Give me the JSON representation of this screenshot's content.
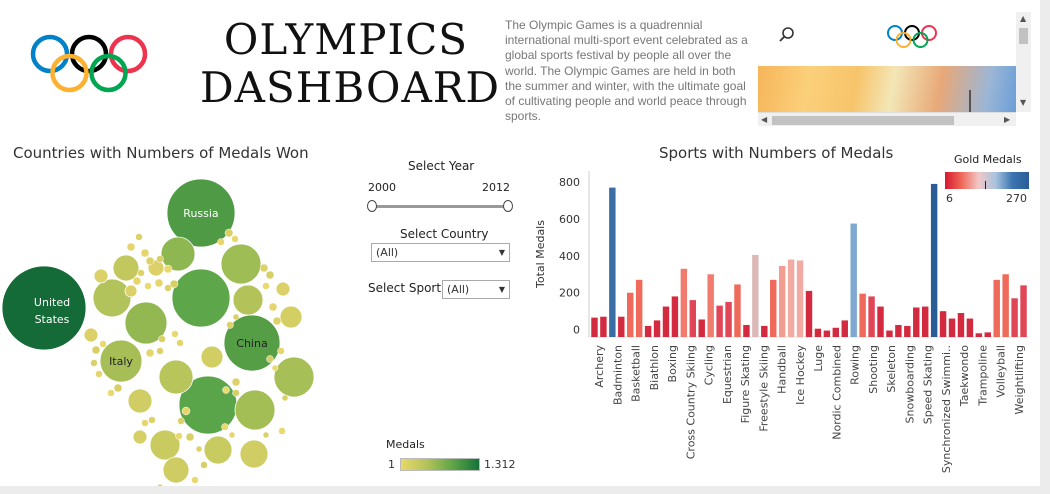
{
  "header": {
    "title_line1": "OLYMPICS",
    "title_line2": "DASHBOARD",
    "description": "The Olympic Games is a quadrennial international multi-sport event celebrated as a global sports festival by people all over the world. The Olympic Games are held in both the summer and winter, with the ultimate goal of cultivating people and world peace through sports.",
    "ring_colors": [
      "#0081c8",
      "#fcb131",
      "#000000",
      "#00a651",
      "#ee334e"
    ]
  },
  "image_panel": {
    "icons": [
      "search-icon",
      "olympic-rings-icon",
      "chevron-up-icon",
      "chevron-down-icon",
      "chevron-left-icon",
      "chevron-right-icon"
    ]
  },
  "bubble_section": {
    "title": "Countries with Numbers of Medals Won",
    "labels": [
      "United States",
      "Russia",
      "China",
      "Italy"
    ],
    "legend": {
      "title": "Medals",
      "min": "1",
      "max": "1.312"
    }
  },
  "filters": {
    "year_label": "Select Year",
    "year_min": "2000",
    "year_max": "2012",
    "country_label": "Select Country",
    "country_value": "(All)",
    "sport_label": "Select Sport",
    "sport_value": "(All)"
  },
  "bar_section": {
    "title": "Sports with Numbers of Medals",
    "legend": {
      "title": "Gold Medals",
      "min": "6",
      "max": "270"
    }
  },
  "chart_data": {
    "type": "bar",
    "title": "Sports with Numbers of Medals",
    "ylabel": "Total Medals",
    "ylim": [
      -40,
      860
    ],
    "yticks": [
      0,
      200,
      400,
      600,
      800
    ],
    "labeled_categories": [
      "Archery",
      "Badminton",
      "Basketball",
      "Biathlon",
      "Boxing",
      "Cross Country Skiing",
      "Cycling",
      "Equestrian",
      "Figure Skating",
      "Freestyle Skiing",
      "Handball",
      "Ice Hockey",
      "Luge",
      "Nordic Combined",
      "Rowing",
      "Shooting",
      "Skeleton",
      "Snowboarding",
      "Speed Skating",
      "Synchronized Swimmi..",
      "Taekwondo",
      "Trampoline",
      "Volleyball",
      "Weightlifting"
    ],
    "values": [
      65,
      70,
      770,
      70,
      200,
      270,
      20,
      50,
      125,
      180,
      330,
      160,
      55,
      300,
      130,
      150,
      245,
      25,
      405,
      20,
      270,
      345,
      380,
      375,
      210,
      5,
      -5,
      10,
      50,
      575,
      195,
      180,
      125,
      -5,
      25,
      20,
      120,
      125,
      790,
      100,
      60,
      90,
      60,
      -20,
      -15,
      270,
      300,
      170,
      240
    ],
    "colors": [
      "#d42a3f",
      "#d42a3f",
      "#3b6ea5",
      "#d42a3f",
      "#ef6a5a",
      "#ef6a5a",
      "#d42a3f",
      "#d42a3f",
      "#d42a3f",
      "#d42a3f",
      "#f17b6d",
      "#e04656",
      "#d42a3f",
      "#f17b6d",
      "#e04656",
      "#e04656",
      "#ef6a5a",
      "#d42a3f",
      "#dcb8b8",
      "#d42a3f",
      "#ef6a5a",
      "#f19d92",
      "#f2aba2",
      "#f2aba2",
      "#d42a3f",
      "#d42a3f",
      "#d42a3f",
      "#d42a3f",
      "#d42a3f",
      "#7fa8d2",
      "#ef6a5a",
      "#e04656",
      "#d42a3f",
      "#d42a3f",
      "#d42a3f",
      "#d42a3f",
      "#d42a3f",
      "#d42a3f",
      "#2a5c96",
      "#d42a3f",
      "#d42a3f",
      "#d42a3f",
      "#d42a3f",
      "#d42a3f",
      "#d42a3f",
      "#ef6a5a",
      "#ef6a5a",
      "#e04656",
      "#e04656"
    ],
    "grid": false,
    "legend": "top-right"
  }
}
